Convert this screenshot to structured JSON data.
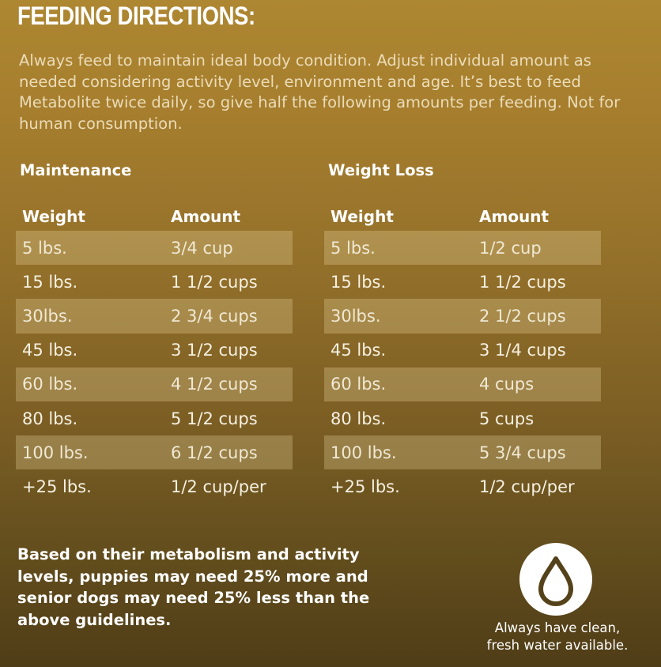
{
  "header": {
    "title": "FEEDING DIRECTIONS:"
  },
  "intro": "Always feed to maintain ideal body condition. Adjust individual amount as needed considering activity level, environment and age. It’s best to feed Metabolite twice daily, so give half the following amounts per feeding. Not for human consumption.",
  "maintenance": {
    "heading": "Maintenance",
    "col_weight": "Weight",
    "col_amount": "Amount",
    "rows": [
      {
        "weight": "5 lbs.",
        "amount": "3/4 cup"
      },
      {
        "weight": "15 lbs.",
        "amount": "1 1/2 cups"
      },
      {
        "weight": "30lbs.",
        "amount": "2 3/4 cups"
      },
      {
        "weight": "45 lbs.",
        "amount": "3 1/2 cups"
      },
      {
        "weight": "60 lbs.",
        "amount": "4 1/2 cups"
      },
      {
        "weight": "80 lbs.",
        "amount": "5 1/2 cups"
      },
      {
        "weight": "100 lbs.",
        "amount": "6 1/2 cups"
      },
      {
        "weight": "+25 lbs.",
        "amount": "1/2 cup/per"
      }
    ]
  },
  "weight_loss": {
    "heading": "Weight Loss",
    "col_weight": "Weight",
    "col_amount": "Amount",
    "rows": [
      {
        "weight": "5 lbs.",
        "amount": "1/2 cup"
      },
      {
        "weight": "15 lbs.",
        "amount": "1 1/2 cups"
      },
      {
        "weight": "30lbs.",
        "amount": "2 1/2 cups"
      },
      {
        "weight": "45 lbs.",
        "amount": "3 1/4 cups"
      },
      {
        "weight": "60 lbs.",
        "amount": "4 cups"
      },
      {
        "weight": "80 lbs.",
        "amount": "5 cups"
      },
      {
        "weight": "100 lbs.",
        "amount": "5 3/4 cups"
      },
      {
        "weight": "+25 lbs.",
        "amount": "1/2 cup/per"
      }
    ]
  },
  "note": "Based on their metabolism and activity levels, puppies may need 25% more and senior dogs may need 25% less than the above guidelines.",
  "water": {
    "icon": "water-drop-icon",
    "caption_line1": "Always have clean,",
    "caption_line2": "fresh water available."
  },
  "colors": {
    "background_top": "#ae8732",
    "background_bottom": "#4f3d17",
    "text": "#ffffff",
    "intro_text": "#ebdcb8"
  }
}
